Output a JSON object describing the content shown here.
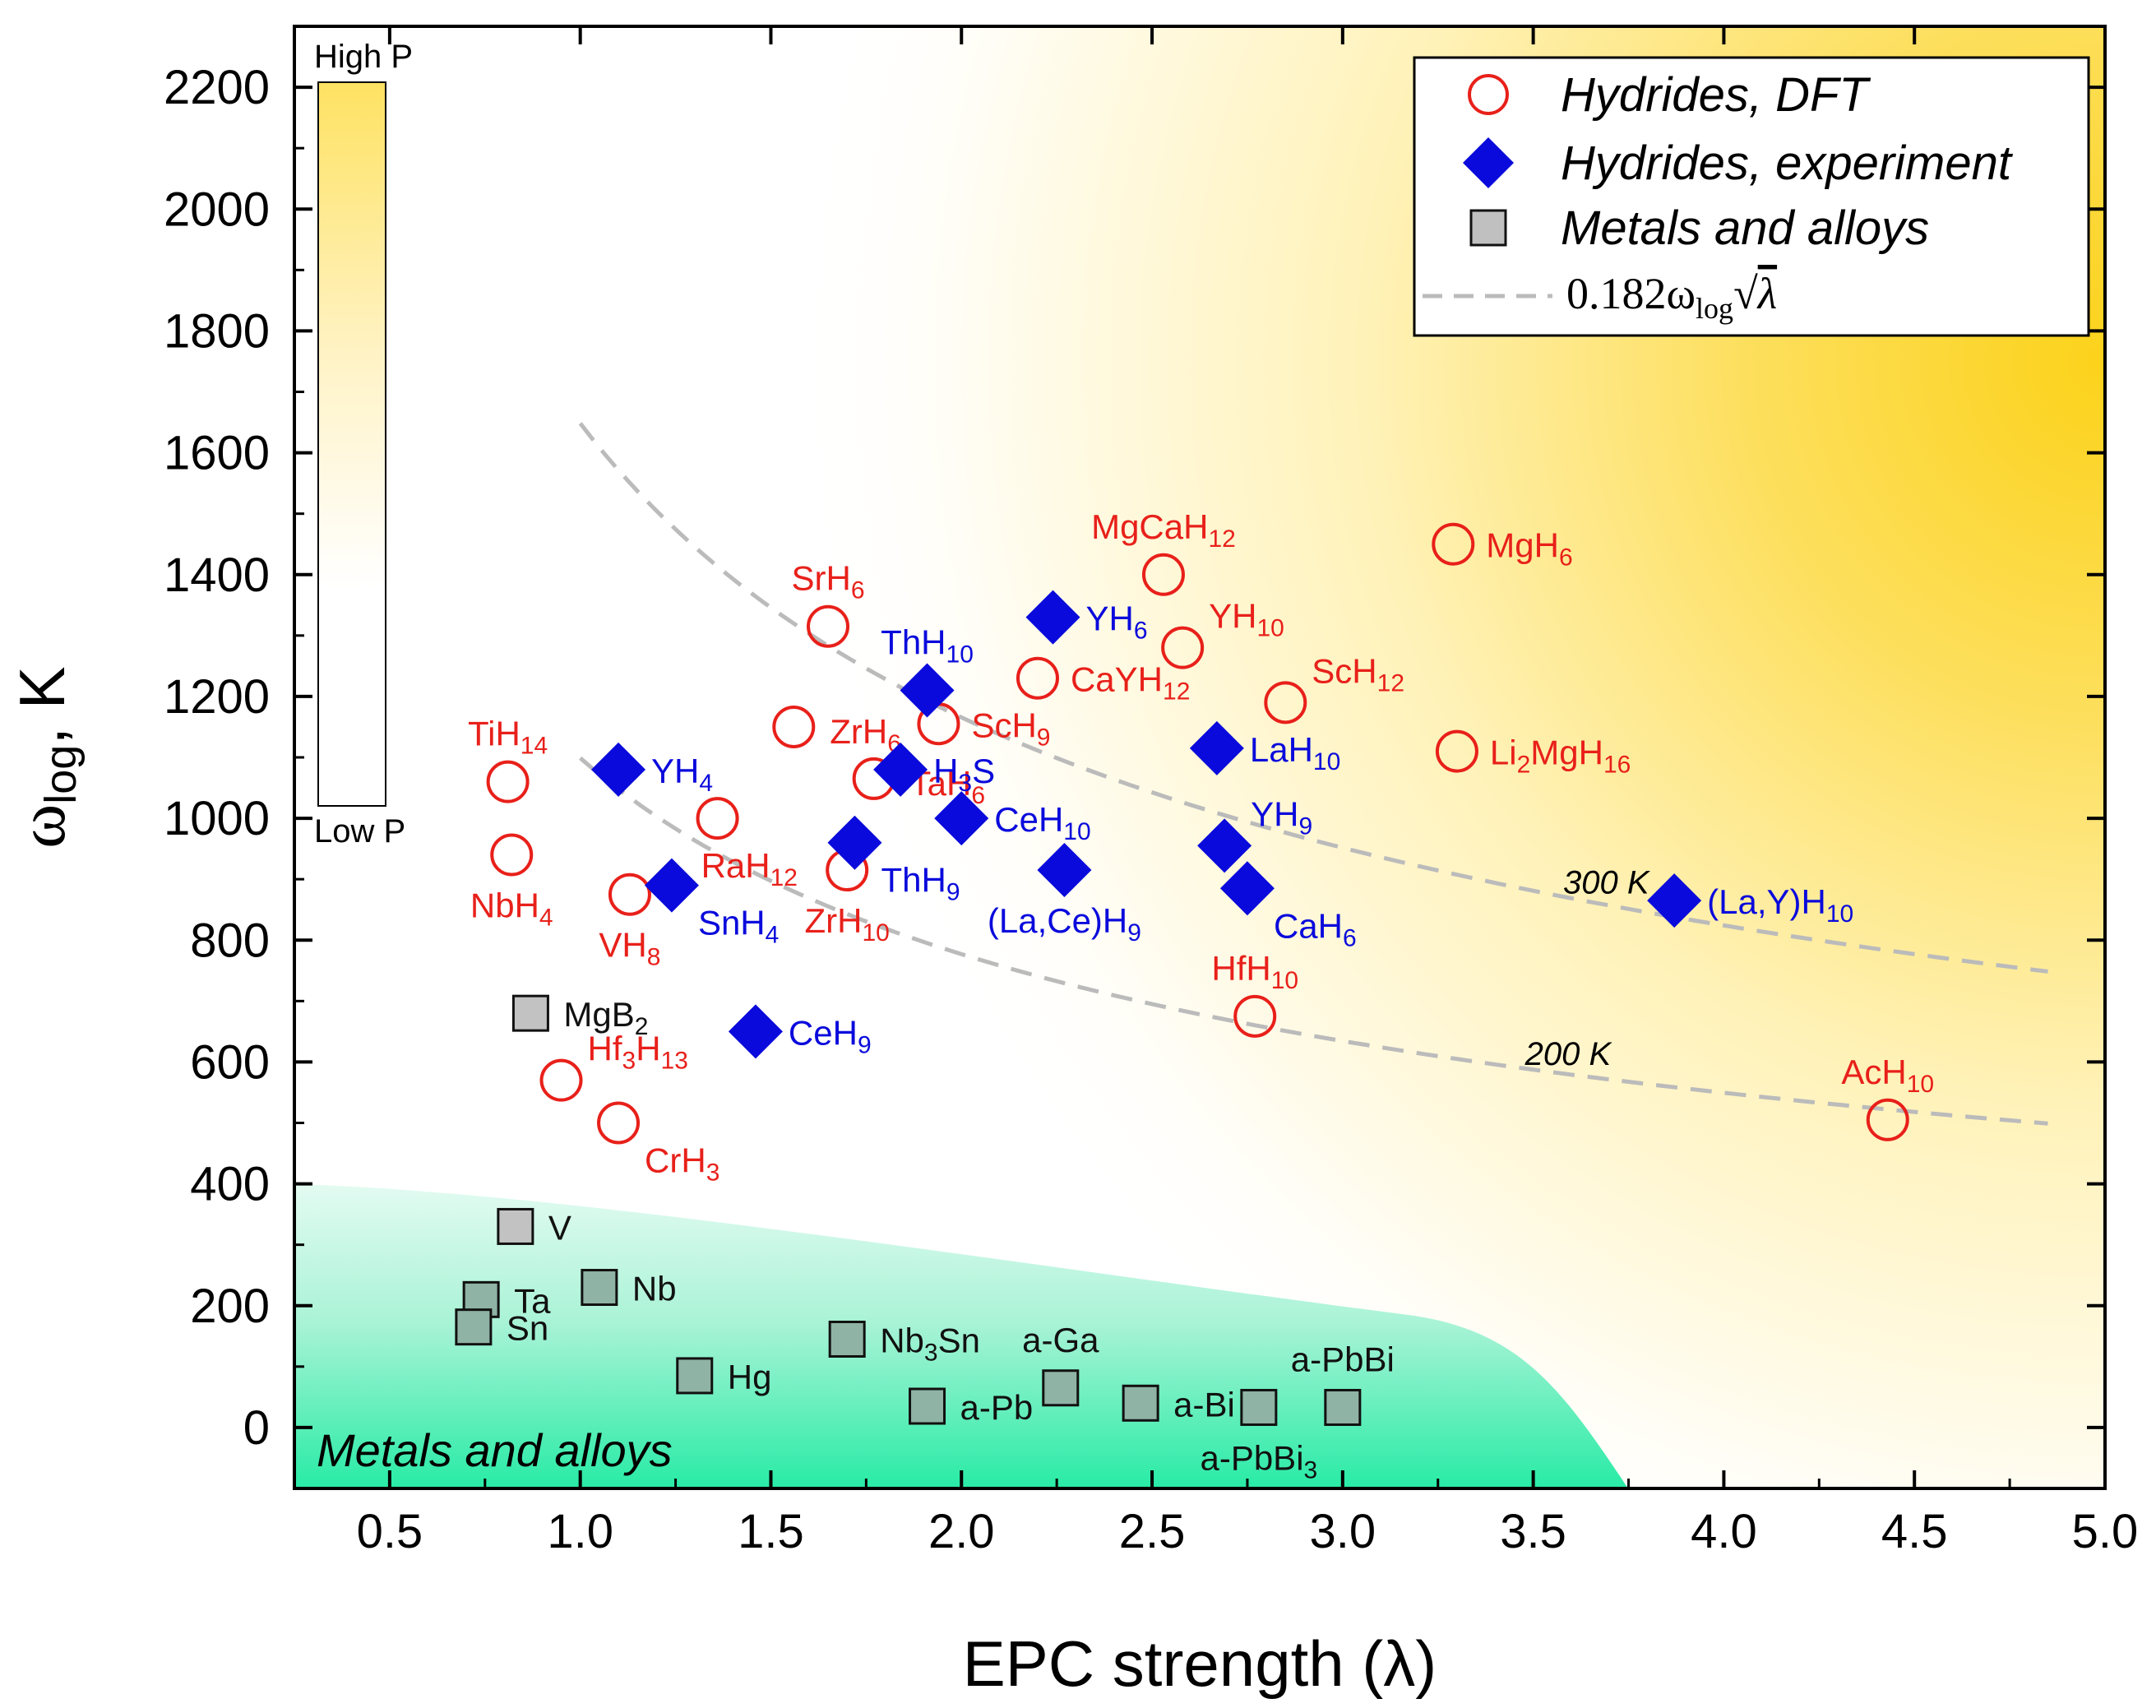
{
  "chart_data": {
    "type": "scatter",
    "xlabel": "EPC strength (λ)",
    "ylabel_main": "ω",
    "ylabel_sub": "log",
    "ylabel_unit": ", K",
    "xlim": [
      0.25,
      5.0
    ],
    "ylim": [
      -100,
      2300
    ],
    "xticks": [
      "0.5",
      "1.0",
      "1.5",
      "2.0",
      "2.5",
      "3.0",
      "3.5",
      "4.0",
      "4.5",
      "5.0"
    ],
    "yticks": [
      "0",
      "200",
      "400",
      "600",
      "800",
      "1000",
      "1200",
      "1400",
      "1600",
      "1800",
      "2000",
      "2200"
    ],
    "colorbar": {
      "high_label": "High P",
      "low_label": "Low P"
    },
    "region_label": "Metals and alloys",
    "legend": {
      "dft": "Hydrides, DFT",
      "experiment": "Hydrides, experiment",
      "metals": "Metals and alloys",
      "curve_prefix": "0.182ω",
      "curve_sub": "log",
      "curve_sqrt": "λ"
    },
    "tc_curves": [
      {
        "tc": 300,
        "label": "300 K",
        "x_range": [
          1.0,
          4.85
        ],
        "label_x": 3.6
      },
      {
        "tc": 200,
        "label": "200 K",
        "x_range": [
          1.0,
          4.85
        ],
        "label_x": 3.5
      }
    ],
    "colors": {
      "dft": "#e8201a",
      "experiment": "#0a0adc",
      "metals": "#111111",
      "curve": "#bbbbbb",
      "high": "#fbd728"
    },
    "series": [
      {
        "name": "Hydrides, DFT",
        "marker": "circle",
        "points": [
          {
            "x": 0.81,
            "y": 1060,
            "label": "TiH",
            "sub": "14",
            "anchor": "above"
          },
          {
            "x": 0.82,
            "y": 940,
            "label": "NbH",
            "sub": "4",
            "anchor": "below"
          },
          {
            "x": 1.13,
            "y": 875,
            "label": "VH",
            "sub": "8",
            "anchor": "below"
          },
          {
            "x": 1.36,
            "y": 1000,
            "label": "RaH",
            "sub": "12",
            "anchor": "below-right"
          },
          {
            "x": 1.56,
            "y": 1150,
            "label": "ZrH",
            "sub": "6",
            "anchor": "upper-left"
          },
          {
            "x": 1.65,
            "y": 1315,
            "label": "SrH",
            "sub": "6",
            "anchor": "above"
          },
          {
            "x": 1.7,
            "y": 915,
            "label": "ZrH",
            "sub": "10",
            "anchor": "below"
          },
          {
            "x": 1.77,
            "y": 1065,
            "label": "TaH",
            "sub": "6",
            "anchor": "upper-left"
          },
          {
            "x": 1.94,
            "y": 1155,
            "label": "ScH",
            "sub": "9",
            "anchor": "right"
          },
          {
            "x": 2.2,
            "y": 1230,
            "label": "CaYH",
            "sub": "12",
            "anchor": "right"
          },
          {
            "x": 2.53,
            "y": 1400,
            "label": "MgCaH",
            "sub": "12",
            "anchor": "above"
          },
          {
            "x": 2.58,
            "y": 1280,
            "label": "YH",
            "sub": "10",
            "anchor": "upper-right"
          },
          {
            "x": 2.85,
            "y": 1190,
            "label": "ScH",
            "sub": "12",
            "anchor": "upper-right"
          },
          {
            "x": 3.29,
            "y": 1450,
            "label": "MgH",
            "sub": "6",
            "anchor": "right"
          },
          {
            "x": 3.3,
            "y": 1110,
            "label": "Li",
            "sub": "2",
            "post": "MgH",
            "sub2": "16",
            "anchor": "right"
          },
          {
            "x": 2.77,
            "y": 675,
            "label": "HfH",
            "sub": "10",
            "anchor": "above"
          },
          {
            "x": 4.43,
            "y": 505,
            "label": "AcH",
            "sub": "10",
            "anchor": "above"
          },
          {
            "x": 0.95,
            "y": 570,
            "label": "Hf",
            "sub": "3",
            "post": "H",
            "sub2": "13",
            "anchor": "upper-right"
          },
          {
            "x": 1.1,
            "y": 500,
            "label": "CrH",
            "sub": "3",
            "anchor": "lower-right"
          }
        ]
      },
      {
        "name": "Hydrides, experiment",
        "marker": "diamond",
        "points": [
          {
            "x": 1.1,
            "y": 1080,
            "label": "YH",
            "sub": "4",
            "anchor": "right"
          },
          {
            "x": 1.24,
            "y": 890,
            "label": "SnH",
            "sub": "4",
            "anchor": "lower-right"
          },
          {
            "x": 1.46,
            "y": 650,
            "label": "CeH",
            "sub": "9",
            "anchor": "right"
          },
          {
            "x": 1.72,
            "y": 960,
            "label": "ThH",
            "sub": "9",
            "anchor": "lower-right"
          },
          {
            "x": 1.84,
            "y": 1080,
            "label": "H",
            "sub": "3",
            "post": "S",
            "anchor": "right"
          },
          {
            "x": 1.91,
            "y": 1210,
            "label": "ThH",
            "sub": "10",
            "anchor": "above"
          },
          {
            "x": 2.0,
            "y": 1000,
            "label": "CeH",
            "sub": "10",
            "anchor": "right"
          },
          {
            "x": 2.24,
            "y": 1330,
            "label": "YH",
            "sub": "6",
            "anchor": "right"
          },
          {
            "x": 2.27,
            "y": 915,
            "label": "(La,Ce)H",
            "sub": "9",
            "anchor": "below"
          },
          {
            "x": 2.67,
            "y": 1115,
            "label": "LaH",
            "sub": "10",
            "anchor": "right"
          },
          {
            "x": 2.69,
            "y": 955,
            "label": "YH",
            "sub": "9",
            "anchor": "upper-right"
          },
          {
            "x": 2.75,
            "y": 885,
            "label": "CaH",
            "sub": "6",
            "anchor": "lower-right"
          },
          {
            "x": 3.87,
            "y": 865,
            "label": "(La,Y)H",
            "sub": "10",
            "anchor": "right"
          }
        ]
      },
      {
        "name": "Metals and alloys",
        "marker": "square",
        "points": [
          {
            "x": 0.87,
            "y": 680,
            "label": "MgB",
            "sub": "2",
            "anchor": "right",
            "light": true
          },
          {
            "x": 0.83,
            "y": 330,
            "label": "V",
            "anchor": "right",
            "light": true
          },
          {
            "x": 0.74,
            "y": 210,
            "label": "Ta",
            "anchor": "right"
          },
          {
            "x": 0.72,
            "y": 165,
            "label": "Sn",
            "anchor": "right"
          },
          {
            "x": 1.05,
            "y": 230,
            "label": "Nb",
            "anchor": "right"
          },
          {
            "x": 1.3,
            "y": 85,
            "label": "Hg",
            "anchor": "right"
          },
          {
            "x": 1.7,
            "y": 145,
            "label": "Nb",
            "sub": "3",
            "post": "Sn",
            "anchor": "right"
          },
          {
            "x": 1.91,
            "y": 35,
            "label": "a-Pb",
            "anchor": "right"
          },
          {
            "x": 2.26,
            "y": 65,
            "label": "a-Ga",
            "anchor": "above"
          },
          {
            "x": 2.47,
            "y": 40,
            "label": "a-Bi",
            "anchor": "right"
          },
          {
            "x": 2.78,
            "y": 33,
            "label": "a-PbBi",
            "sub": "3",
            "anchor": "below"
          },
          {
            "x": 3.0,
            "y": 33,
            "label": "a-PbBi",
            "anchor": "above"
          }
        ]
      }
    ]
  }
}
